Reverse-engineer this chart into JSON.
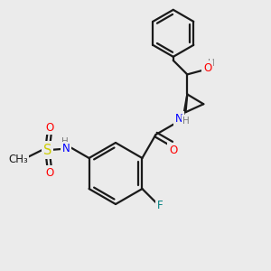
{
  "bg_color": "#ebebeb",
  "bond_color": "#1a1a1a",
  "atom_colors": {
    "O": "#ff0000",
    "N": "#0000ff",
    "F": "#008080",
    "S": "#cccc00",
    "H": "#7a7a7a",
    "C": "#1a1a1a"
  },
  "lw": 1.6,
  "fs": 8.5,
  "fs_small": 7.5
}
